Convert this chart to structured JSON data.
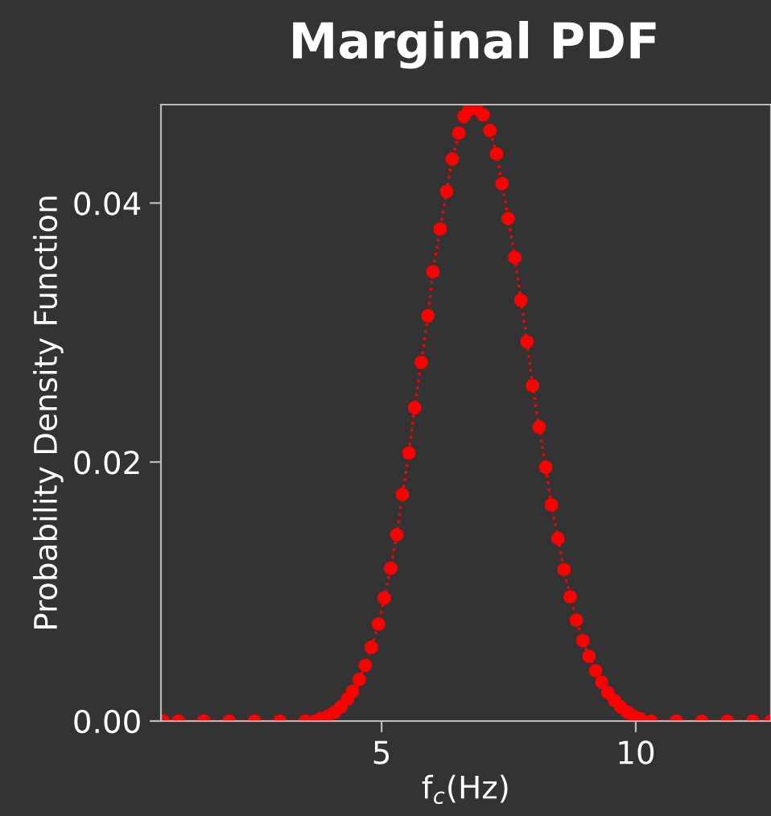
{
  "chart_data": {
    "type": "line",
    "title": "Marginal PDF",
    "xlabel": "f$_{c}$(Hz)",
    "ylabel": "Probability Density Function",
    "x": [
      0.7,
      1.0,
      1.5,
      2.0,
      2.5,
      3.0,
      3.5,
      3.7,
      3.81,
      3.95,
      4.08,
      4.2,
      4.33,
      4.43,
      4.56,
      4.68,
      4.8,
      4.94,
      5.05,
      5.18,
      5.3,
      5.41,
      5.54,
      5.65,
      5.78,
      5.91,
      6.01,
      6.15,
      6.28,
      6.39,
      6.52,
      6.62,
      6.72,
      6.87,
      7.0,
      7.13,
      7.26,
      7.37,
      7.49,
      7.62,
      7.74,
      7.86,
      7.97,
      8.1,
      8.23,
      8.34,
      8.47,
      8.59,
      8.71,
      8.83,
      8.96,
      9.08,
      9.21,
      9.33,
      9.45,
      9.58,
      9.7,
      9.83,
      9.95,
      10.08,
      10.3,
      10.8,
      11.3,
      11.8,
      12.3,
      12.66
    ],
    "series": [
      {
        "color": "#ff0000",
        "values": [
          0,
          0,
          0,
          0,
          0,
          0,
          0,
          0,
          0.0002,
          0.0004,
          0.0007,
          0.0011,
          0.0017,
          0.0023,
          0.0032,
          0.0043,
          0.0057,
          0.0075,
          0.0095,
          0.0118,
          0.0144,
          0.0175,
          0.0207,
          0.0242,
          0.0277,
          0.0313,
          0.0347,
          0.038,
          0.0409,
          0.0434,
          0.0454,
          0.0467,
          0.0472,
          0.0473,
          0.0468,
          0.0456,
          0.0438,
          0.0415,
          0.0388,
          0.0358,
          0.0325,
          0.0293,
          0.0259,
          0.0227,
          0.0196,
          0.0167,
          0.0141,
          0.0117,
          0.0096,
          0.0078,
          0.0062,
          0.005,
          0.0039,
          0.003,
          0.0022,
          0.0016,
          0.0011,
          0.0007,
          0.0004,
          0.0002,
          0,
          0,
          0,
          0,
          0,
          0
        ]
      }
    ],
    "xlim": [
      0.66,
      12.66
    ],
    "ylim": [
      0,
      0.0476
    ],
    "xticks": [
      5,
      10
    ],
    "yticks": [
      {
        "value": 0,
        "label": "0.00"
      },
      {
        "value": 0.02,
        "label": "0.02"
      },
      {
        "value": 0.04,
        "label": "0.04"
      }
    ],
    "marker": "circle",
    "line_style": "dotted",
    "grid": false,
    "legend": false
  }
}
